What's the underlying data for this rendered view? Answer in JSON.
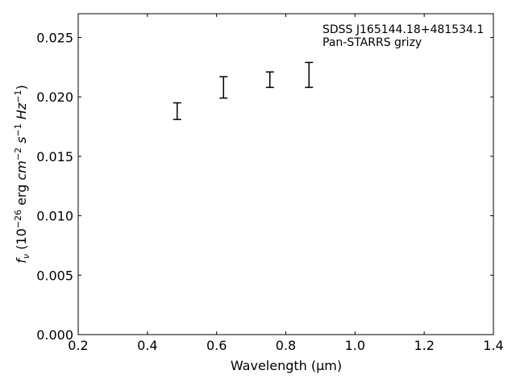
{
  "chart_data": {
    "type": "scatter",
    "style": "errorbar",
    "xlabel": "Wavelength (μm)",
    "ylabel": "f_ν (10^-26 erg cm^-2 s^-1 Hz^-1)",
    "xlim": [
      0.2,
      1.4
    ],
    "ylim": [
      0.0,
      0.027
    ],
    "x_ticks": [
      "0.2",
      "0.4",
      "0.6",
      "0.8",
      "1.0",
      "1.2",
      "1.4"
    ],
    "y_ticks": [
      "0.000",
      "0.005",
      "0.010",
      "0.015",
      "0.020",
      "0.025"
    ],
    "x_tick_values": [
      0.2,
      0.4,
      0.6,
      0.8,
      1.0,
      1.2,
      1.4
    ],
    "y_tick_values": [
      0.0,
      0.005,
      0.01,
      0.015,
      0.02,
      0.025
    ],
    "annotation": [
      "SDSS J165144.18+481534.1",
      "Pan-STARRS grizy"
    ],
    "grid": false,
    "points": [
      {
        "x": 0.486,
        "y_low": 0.0181,
        "y_high": 0.0195
      },
      {
        "x": 0.62,
        "y_low": 0.0199,
        "y_high": 0.0217
      },
      {
        "x": 0.754,
        "y_low": 0.0208,
        "y_high": 0.0221
      },
      {
        "x": 0.867,
        "y_low": 0.0208,
        "y_high": 0.0229
      }
    ],
    "color": "#000000"
  }
}
